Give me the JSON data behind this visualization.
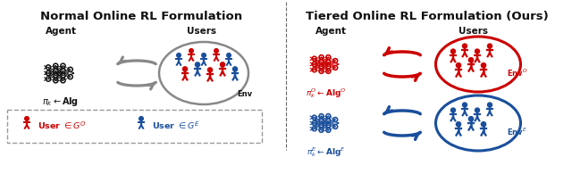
{
  "left_title": "Normal Online RL Formulation",
  "right_title": "Tiered Online RL Formulation (Ours)",
  "agent_label": "Agent",
  "users_label": "Users",
  "left_policy_label": "$\\pi_k \\leftarrow \\mathbf{Alg}$",
  "right_policy_O_label": "$\\pi_k^O \\leftarrow \\mathbf{Alg}^O$",
  "right_policy_E_label": "$\\pi_k^E \\leftarrow \\mathbf{Alg}^E$",
  "left_env_label": "Env",
  "right_env_O_label": "Env$^O$",
  "right_env_E_label": "Env$^E$",
  "legend_red_label": "User $\\in G^O$",
  "legend_blue_label": "User $\\in G^E$",
  "red_color": "#CC0000",
  "blue_color": "#1A4F9C",
  "gray_color": "#888888",
  "black_color": "#111111",
  "bg_color": "#FFFFFF"
}
